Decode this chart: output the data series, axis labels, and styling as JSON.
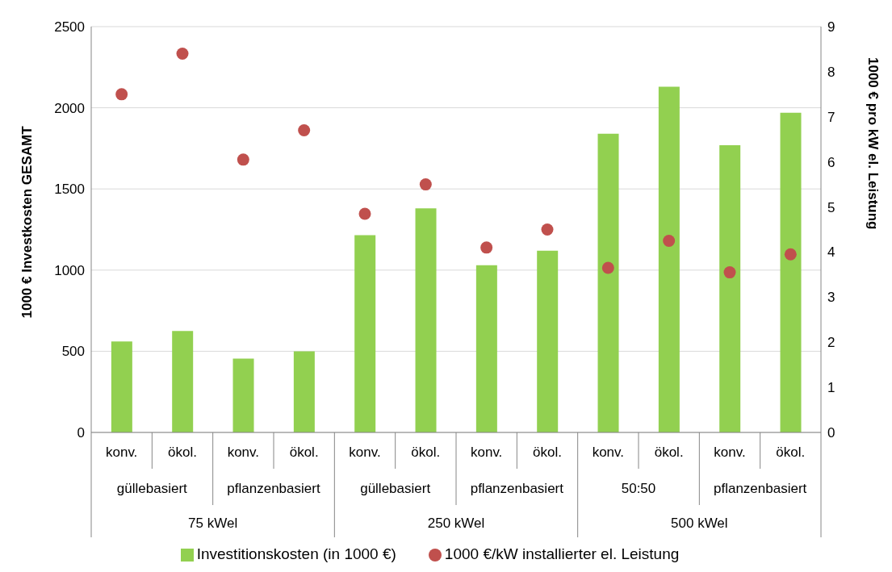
{
  "chart_data": {
    "type": "bar",
    "categories": [
      "konv.",
      "ökol.",
      "konv.",
      "ökol.",
      "konv.",
      "ökol.",
      "konv.",
      "ökol.",
      "konv.",
      "ökol.",
      "konv.",
      "ökol."
    ],
    "series": [
      {
        "name": "Investitionskosten (in 1000 €)",
        "color": "#92d050",
        "values": [
          560,
          625,
          455,
          500,
          1215,
          1380,
          1030,
          1120,
          1840,
          2130,
          1770,
          1970
        ]
      },
      {
        "name": "1000 €/kW installierter el. Leistung",
        "type": "scatter",
        "axis": "y2",
        "color": "#c0504d",
        "values": [
          7.5,
          8.4,
          6.05,
          6.7,
          4.85,
          5.5,
          4.1,
          4.5,
          3.65,
          4.25,
          3.55,
          3.95
        ]
      }
    ],
    "ylabel": "1000 € Investkosten GESAMT",
    "y2label": "1000 € pro kW el. Leistung",
    "ylim": [
      0,
      2500
    ],
    "yticks": [
      0,
      500,
      1000,
      1500,
      2000,
      2500
    ],
    "y2lim": [
      0,
      9
    ],
    "y2ticks": [
      0,
      1,
      2,
      3,
      4,
      5,
      6,
      7,
      8,
      9
    ],
    "annotations": [
      "güllebasiert",
      "pflanzenbasiert",
      "güllebasiert",
      "pflanzenbasiert",
      "50:50",
      "pflanzenbasiert",
      "75 kWel",
      "250 kWel",
      "500 kWel"
    ],
    "grid": "y",
    "legend": "bottom",
    "marker": "circle"
  }
}
